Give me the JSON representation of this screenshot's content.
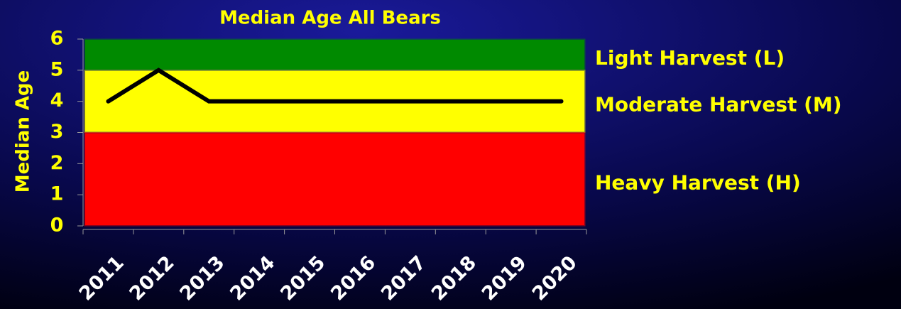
{
  "chart_data": {
    "type": "line",
    "title": "Median Age All Bears",
    "y_label": "Median Age",
    "categories": [
      "2011",
      "2012",
      "2013",
      "2014",
      "2015",
      "2016",
      "2017",
      "2018",
      "2019",
      "2020"
    ],
    "series": [
      {
        "name": "Median Age",
        "color": "#000000",
        "values": [
          4,
          5,
          4,
          4,
          4,
          4,
          4,
          4,
          4,
          4
        ]
      }
    ],
    "ylim": [
      0,
      6
    ],
    "yticks": [
      0,
      1,
      2,
      3,
      4,
      5,
      6
    ],
    "bands": [
      {
        "label": "Light Harvest (L)",
        "from": 5,
        "to": 6,
        "color": "#008a00"
      },
      {
        "label": "Moderate Harvest (M)",
        "from": 3,
        "to": 5,
        "color": "#ffff00"
      },
      {
        "label": "Heavy Harvest (H)",
        "from": 0,
        "to": 3,
        "color": "#ff0000"
      }
    ]
  }
}
